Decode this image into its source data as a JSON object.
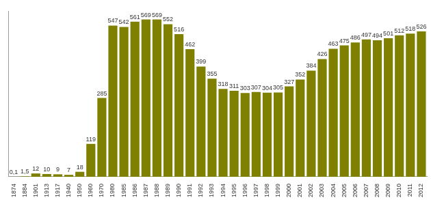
{
  "chart_data": {
    "type": "bar",
    "categories": [
      "1874",
      "1884",
      "1901",
      "1913",
      "1917",
      "1940",
      "1950",
      "1960",
      "1970",
      "1980",
      "1985",
      "1986",
      "1987",
      "1988",
      "1989",
      "1990",
      "1991",
      "1992",
      "1993",
      "1994",
      "1995",
      "1996",
      "1997",
      "1998",
      "1999",
      "2000",
      "2001",
      "2002",
      "2003",
      "2004",
      "2005",
      "2006",
      "2007",
      "2008",
      "2009",
      "2010",
      "2011",
      "2012"
    ],
    "values": [
      0.1,
      1.5,
      12,
      10,
      9,
      7,
      18,
      119,
      285,
      547,
      542,
      561,
      569,
      569,
      552,
      516,
      462,
      399,
      355,
      318,
      311,
      303,
      307,
      304,
      305,
      327,
      352,
      384,
      426,
      463,
      475,
      486,
      497,
      494,
      501,
      512,
      518,
      526
    ],
    "value_labels": [
      "0,1",
      "1,5",
      "12",
      "10",
      "9",
      "7",
      "18",
      "119",
      "285",
      "547",
      "542",
      "561",
      "569",
      "569",
      "552",
      "516",
      "462",
      "399",
      "355",
      "318",
      "311",
      "303",
      "307",
      "304",
      "305",
      "327",
      "352",
      "384",
      "426",
      "463",
      "475",
      "486",
      "497",
      "494",
      "501",
      "512",
      "518",
      "526"
    ],
    "color": "#808000",
    "ylim": [
      0,
      600
    ],
    "grid": false,
    "data_labels": true,
    "tick_labels": "x"
  }
}
